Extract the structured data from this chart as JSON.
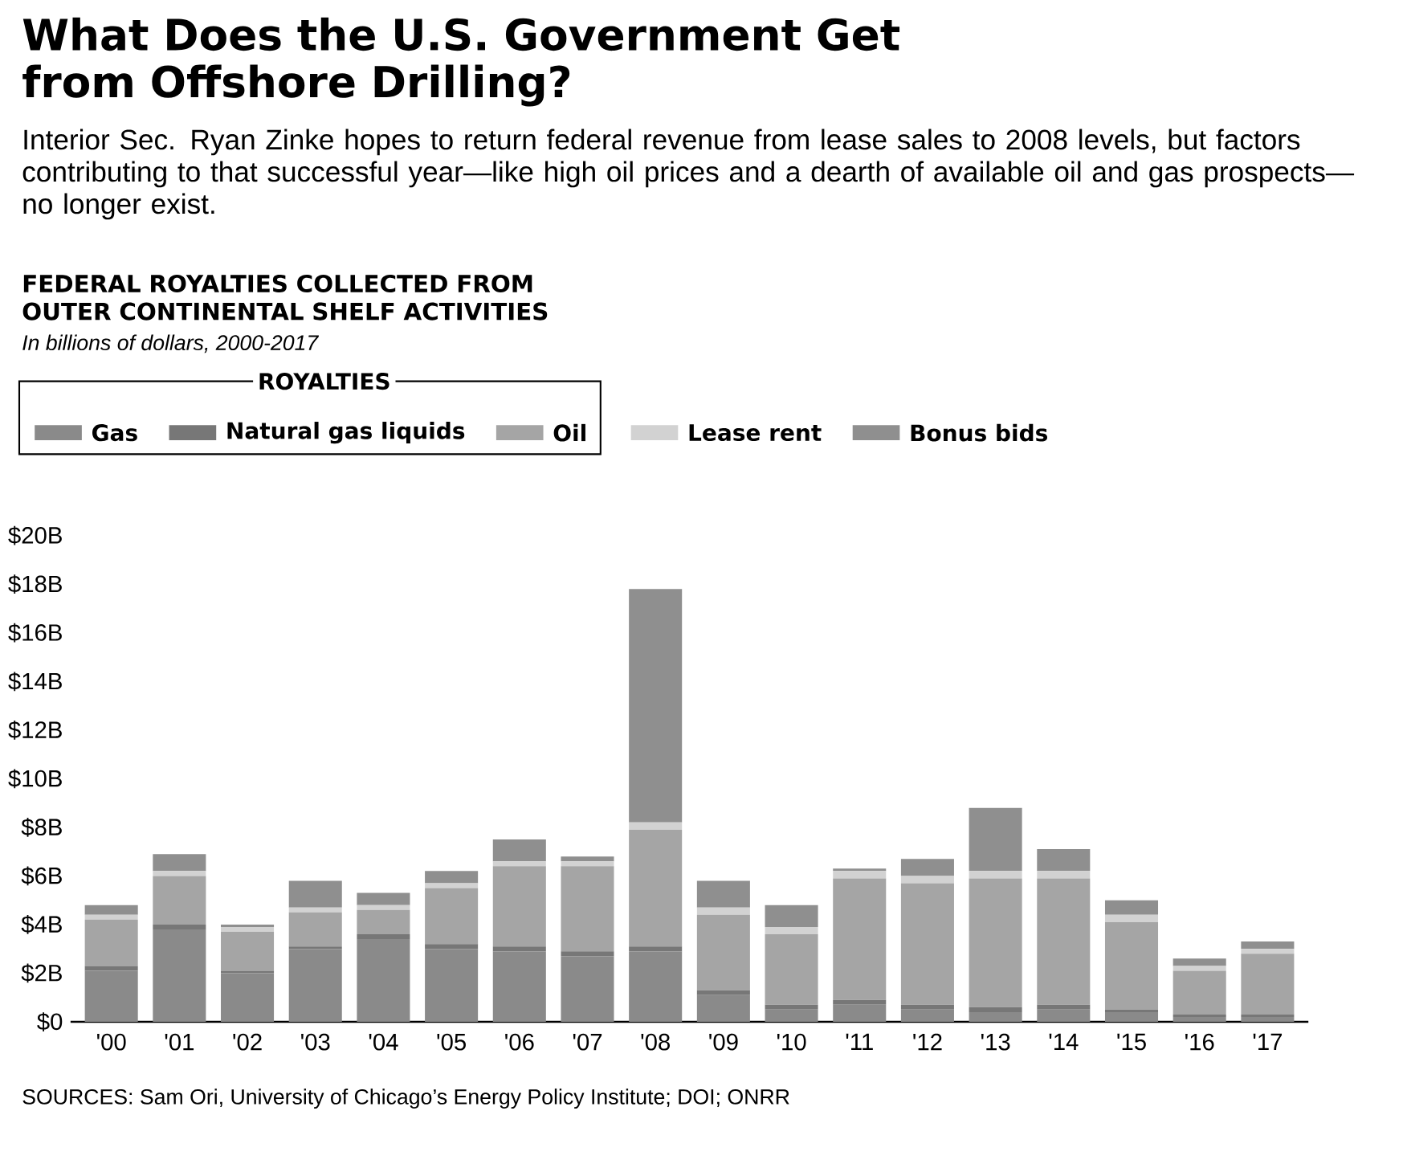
{
  "chart_data": {
    "type": "bar",
    "stacked": true,
    "title": "What Does the U.S. Government Get from Offshore Drilling?",
    "subtitle": "Interior Sec. Ryan Zinke hopes to return federal revenue from lease sales to 2008 levels, but factors contributing to that successful year—like high oil prices and a dearth of available oil and gas prospects—no longer exist.",
    "annotations": [
      "FEDERAL ROYALTIES COLLECTED FROM OUTER CONTINENTAL SHELF ACTIVITIES",
      "In billions of dollars, 2000-2017",
      "SOURCES: Sam Ori, University of Chicago’s Energy Policy Institute; DOI; ONRR"
    ],
    "legend_title": "ROYALTIES",
    "legend": "top",
    "categories": [
      "'00",
      "'01",
      "'02",
      "'03",
      "'04",
      "'05",
      "'06",
      "'07",
      "'08",
      "'09",
      "'10",
      "'11",
      "'12",
      "'13",
      "'14",
      "'15",
      "'16",
      "'17"
    ],
    "series": [
      {
        "name": "Gas",
        "color": "#8a8a8a",
        "values": [
          2.1,
          3.8,
          2.0,
          3.0,
          3.4,
          3.0,
          2.9,
          2.7,
          2.9,
          1.1,
          0.5,
          0.7,
          0.5,
          0.4,
          0.5,
          0.4,
          0.2,
          0.2
        ]
      },
      {
        "name": "Natural gas liquids",
        "color": "#777777",
        "values": [
          0.2,
          0.2,
          0.1,
          0.1,
          0.2,
          0.2,
          0.2,
          0.2,
          0.2,
          0.2,
          0.2,
          0.2,
          0.2,
          0.2,
          0.2,
          0.1,
          0.1,
          0.1
        ]
      },
      {
        "name": "Oil",
        "color": "#a5a5a5",
        "values": [
          1.9,
          2.0,
          1.6,
          1.4,
          1.0,
          2.3,
          3.3,
          3.5,
          4.8,
          3.1,
          2.9,
          5.0,
          5.0,
          5.3,
          5.2,
          3.6,
          1.8,
          2.5
        ]
      },
      {
        "name": "Lease rent",
        "color": "#d2d2d2",
        "values": [
          0.2,
          0.2,
          0.2,
          0.2,
          0.2,
          0.2,
          0.2,
          0.2,
          0.3,
          0.3,
          0.3,
          0.3,
          0.3,
          0.3,
          0.3,
          0.3,
          0.2,
          0.2
        ]
      },
      {
        "name": "Bonus bids",
        "color": "#8f8f8f",
        "values": [
          0.4,
          0.7,
          0.1,
          1.1,
          0.5,
          0.5,
          0.9,
          0.2,
          9.6,
          1.1,
          0.9,
          0.1,
          0.7,
          2.6,
          0.9,
          0.6,
          0.3,
          0.3
        ]
      }
    ],
    "ylim": [
      0,
      20
    ],
    "yticks": [
      {
        "value": 0,
        "label": "$0"
      },
      {
        "value": 2,
        "label": "$2B"
      },
      {
        "value": 4,
        "label": "$4B"
      },
      {
        "value": 6,
        "label": "$6B"
      },
      {
        "value": 8,
        "label": "$8B"
      },
      {
        "value": 10,
        "label": "$10B"
      },
      {
        "value": 12,
        "label": "$12B"
      },
      {
        "value": 14,
        "label": "$14B"
      },
      {
        "value": 16,
        "label": "$16B"
      },
      {
        "value": 18,
        "label": "$18B"
      },
      {
        "value": 20,
        "label": "$20B"
      }
    ]
  }
}
